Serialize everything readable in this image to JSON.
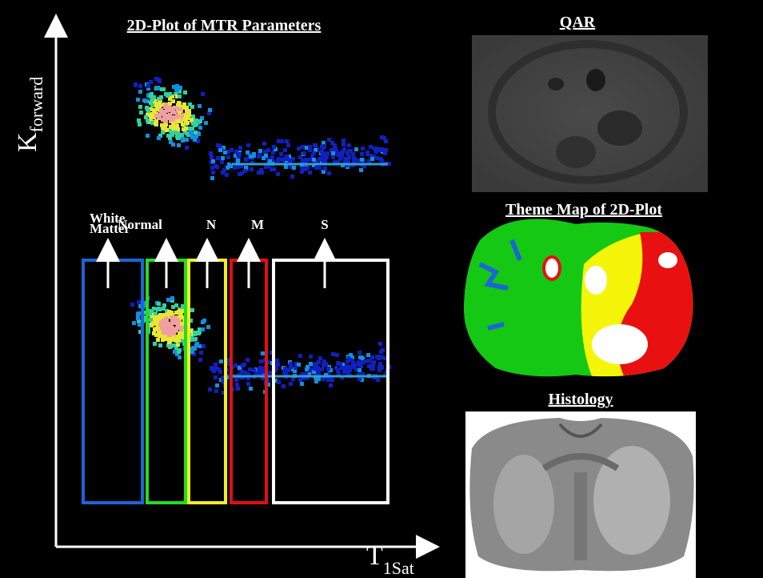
{
  "plot": {
    "title": "2D-Plot of MTR Parameters",
    "y_axis": {
      "label": "K",
      "subscript": "forward"
    },
    "x_axis": {
      "label": "T",
      "subscript": "1Sat"
    },
    "regions": [
      {
        "label": [
          "White",
          "Matter"
        ],
        "color": "#1e64d8"
      },
      {
        "label": [
          "Normal"
        ],
        "color": "#22dd22"
      },
      {
        "label": [
          "N"
        ],
        "color": "#f0f020"
      },
      {
        "label": [
          "M"
        ],
        "color": "#e01010"
      },
      {
        "label": [
          "S"
        ],
        "color": "#ffffff"
      }
    ]
  },
  "panels": [
    {
      "title": "QAR"
    },
    {
      "title": "Theme Map of 2D-Plot"
    },
    {
      "title": "Histology"
    }
  ]
}
